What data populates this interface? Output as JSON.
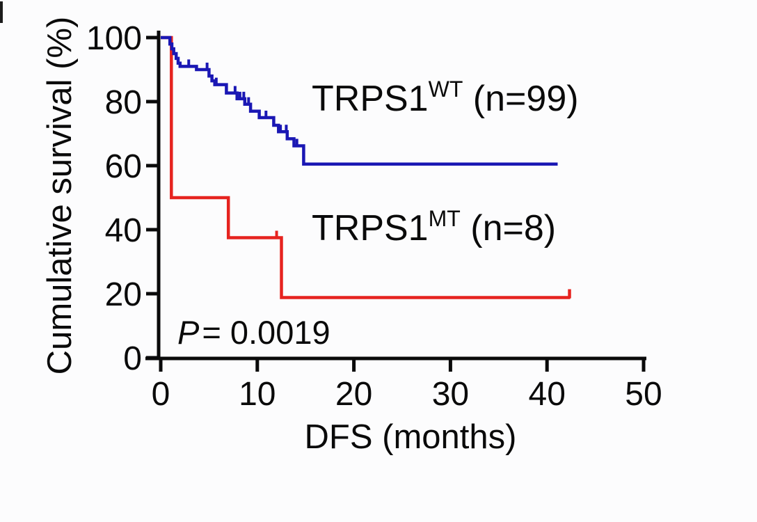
{
  "figure": {
    "background": "#fcfcfd",
    "text_color": "#0a0a0a"
  },
  "annotation": {
    "p_italic": "P",
    "p_rest": "= 0.0019"
  },
  "chart_data": {
    "type": "line",
    "subtype": "kaplan_meier_step",
    "title": "",
    "xlabel": "DFS (months)",
    "ylabel": "Cumulative survival (%)",
    "xlim": [
      0,
      50
    ],
    "ylim": [
      0,
      100
    ],
    "x_ticks": [
      0,
      10,
      20,
      30,
      40,
      50
    ],
    "y_ticks": [
      0,
      20,
      40,
      60,
      80,
      100
    ],
    "grid": false,
    "legend_position": "inline-annotations",
    "p_value": "0.0019",
    "axis_color": "#0a0a0a",
    "series": [
      {
        "name": "TRPS1-MT",
        "label_base": "TRPS1",
        "label_sup": "MT",
        "label_rest": " (n=8)",
        "n": 8,
        "color": "#e6231f",
        "steps_x_months": [
          0,
          1.1,
          7.0,
          12.5
        ],
        "steps_y_pct": [
          100,
          50,
          37.5,
          18.8
        ],
        "end_x": 42.4,
        "censor_x_months": [
          12.0
        ],
        "end_censor_tick": true
      },
      {
        "name": "TRPS1-WT",
        "label_base": "TRPS1",
        "label_sup": "WT",
        "label_rest": " (n=99)",
        "n": 99,
        "color": "#1a17b4",
        "steps_x_months": [
          0,
          0.95,
          1.15,
          1.35,
          1.6,
          1.8,
          2.0,
          3.7,
          5.0,
          5.3,
          5.6,
          6.8,
          7.9,
          8.7,
          9.3,
          10.2,
          11.7,
          12.2,
          13.1,
          13.8,
          14.8
        ],
        "steps_y_pct": [
          100,
          98,
          96.5,
          95,
          93.5,
          92,
          91,
          90,
          88,
          86.5,
          85.3,
          82.7,
          80.9,
          79.2,
          77,
          75,
          72.6,
          70.6,
          68.4,
          66.2,
          60.5
        ],
        "end_x": 41.1,
        "censor_x_months": [
          2.9,
          4.8,
          5.75,
          7.7,
          8.2,
          8.6,
          9.1,
          10.9,
          12.4,
          13.0,
          14.1
        ],
        "end_censor_tick": false
      }
    ]
  }
}
